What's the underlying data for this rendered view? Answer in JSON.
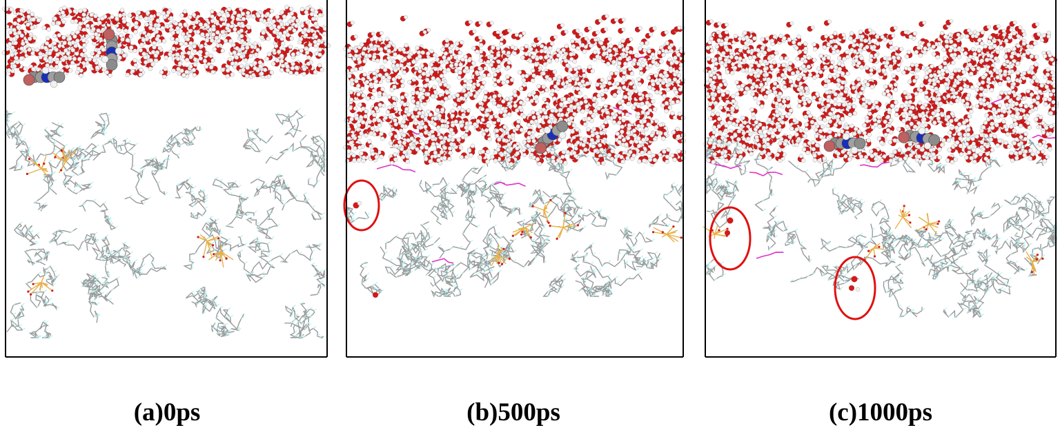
{
  "figure": {
    "panels": [
      {
        "id": "a",
        "caption": "(a)0ps",
        "time_ps": 0,
        "highlighted_molecules": 0
      },
      {
        "id": "b",
        "caption": "(b)500ps",
        "time_ps": 500,
        "highlighted_molecules": 1
      },
      {
        "id": "c",
        "caption": "(c)1000ps",
        "time_ps": 1000,
        "highlighted_molecules": 2
      }
    ],
    "colors": {
      "oxygen": "#d21a1a",
      "hydrogen": "#f2f2f2",
      "carbon": "#8c8c8c",
      "nitrogen": "#1a2fb8",
      "chain_bonds": "#9a9a9a",
      "chain_hydrogen": "#b8f0f0",
      "phosphate": "#e8b04a",
      "magenta_chain": "#e030c8",
      "highlight_circle": "#e01010",
      "frame": "#000000"
    }
  }
}
